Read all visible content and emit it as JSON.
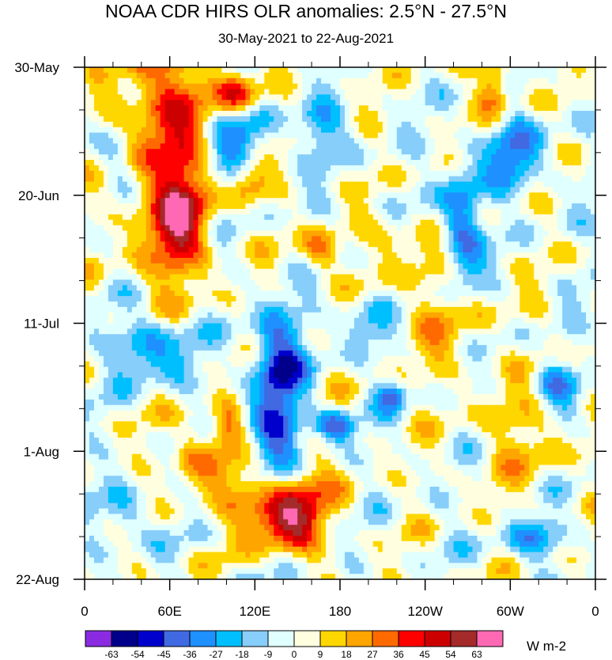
{
  "chart_data": {
    "type": "heatmap",
    "title": "NOAA CDR HIRS OLR anomalies: 2.5°N - 27.5°N",
    "subtitle": "30-May-2021 to 22-Aug-2021",
    "x_tick_labels": [
      "0",
      "60E",
      "120E",
      "180",
      "120W",
      "60W",
      "0"
    ],
    "x_tick_values_deg_east": [
      0,
      60,
      120,
      180,
      240,
      300,
      360
    ],
    "xlim_deg_east": [
      0,
      360
    ],
    "y_tick_labels": [
      "30-May",
      "20-Jun",
      "11-Jul",
      "1-Aug",
      "22-Aug"
    ],
    "y_tick_values_day_offset": [
      0,
      21,
      42,
      63,
      84
    ],
    "ylim_day_offset": [
      0,
      84
    ],
    "y_axis_direction": "time increases downward",
    "colorbar": {
      "units_label": "W m-2",
      "levels": [
        -63,
        -54,
        -45,
        -36,
        -27,
        -18,
        -9,
        0,
        9,
        18,
        27,
        36,
        45,
        54,
        63
      ],
      "colors": [
        "#8a2be2",
        "#00008b",
        "#0000cd",
        "#4169e1",
        "#1e90ff",
        "#00bfff",
        "#87cefa",
        "#e0ffff",
        "#ffffe0",
        "#ffd700",
        "#ffa500",
        "#ff6a00",
        "#ff0000",
        "#cd0000",
        "#a52a2a",
        "#ff69b4"
      ],
      "tick_labels": [
        "-63",
        "-54",
        "-45",
        "-36",
        "-27",
        "-18",
        "-9",
        "0",
        "9",
        "18",
        "27",
        "36",
        "45",
        "54",
        "63"
      ]
    }
  }
}
